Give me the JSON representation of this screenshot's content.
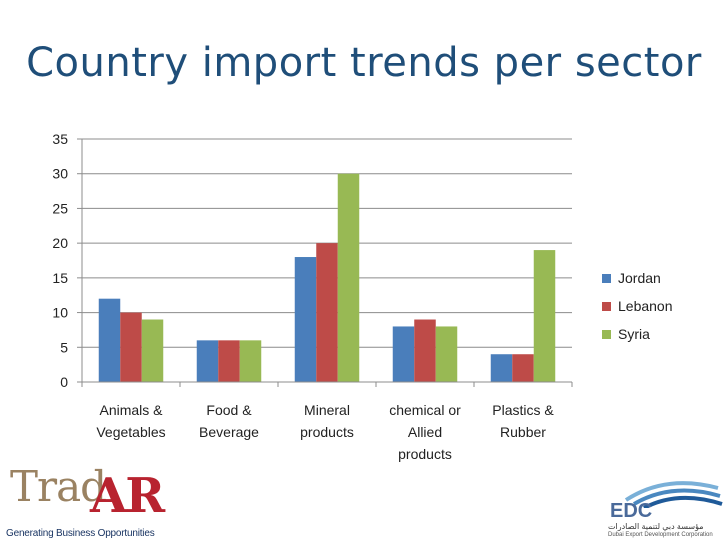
{
  "slide": {
    "title": "Country import trends per sector"
  },
  "chart_data": {
    "type": "bar",
    "title": "Country import trends per sector",
    "xlabel": "",
    "ylabel": "",
    "ylim": [
      0,
      35
    ],
    "yticks": [
      0,
      5,
      10,
      15,
      20,
      25,
      30,
      35
    ],
    "grid": true,
    "legend_position": "right",
    "categories": [
      [
        "Animals &",
        "Vegetables"
      ],
      [
        "Food &",
        "Beverage"
      ],
      [
        "Mineral",
        "products"
      ],
      [
        "chemical or",
        "Allied",
        "products"
      ],
      [
        "Plastics &",
        "Rubber"
      ]
    ],
    "series": [
      {
        "name": "Jordan",
        "color": "#4a7ebb",
        "values": [
          12,
          6,
          18,
          8,
          4
        ]
      },
      {
        "name": "Lebanon",
        "color": "#be4b48",
        "values": [
          10,
          6,
          20,
          9,
          4
        ]
      },
      {
        "name": "Syria",
        "color": "#98b954",
        "values": [
          9,
          6,
          30,
          8,
          19
        ]
      }
    ]
  },
  "logos": {
    "left": {
      "name": "TradAR",
      "part1": "Trad",
      "part2": "AR",
      "tagline": "Generating Business Opportunities"
    },
    "right": {
      "name": "EDC",
      "arabic": "مؤسسة دبي لتنمية الصادرات",
      "subtitle": "Dubai Export Development Corporation"
    }
  }
}
